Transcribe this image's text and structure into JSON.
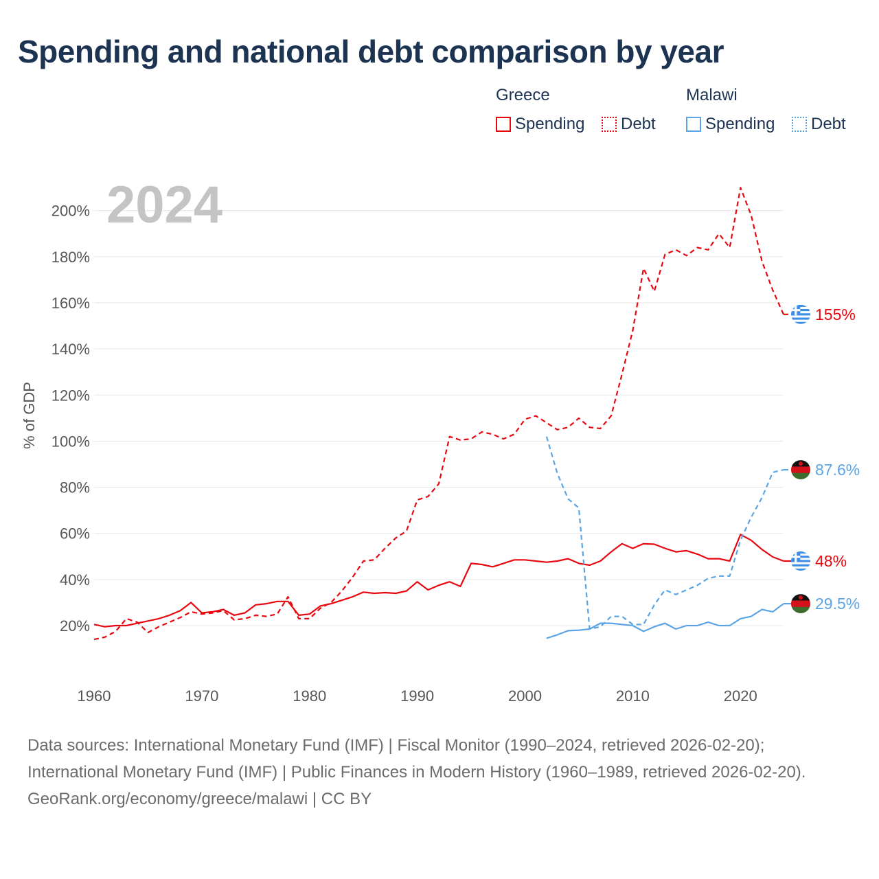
{
  "title": "Spending and national debt comparison by year",
  "legend": {
    "groups": [
      {
        "country": "Greece",
        "items": [
          {
            "label": "Spending",
            "color": "#e8070f",
            "style": "solid"
          },
          {
            "label": "Debt",
            "color": "#e8070f",
            "style": "dotted"
          }
        ]
      },
      {
        "country": "Malawi",
        "items": [
          {
            "label": "Spending",
            "color": "#5aa4e6",
            "style": "solid"
          },
          {
            "label": "Debt",
            "color": "#5aa4e6",
            "style": "dotted"
          }
        ]
      }
    ]
  },
  "chart_data": {
    "type": "line",
    "title": "Spending and national debt comparison by year",
    "year_label": "2024",
    "ylabel": "% of GDP",
    "xlabel": "",
    "xlim": [
      1960,
      2024
    ],
    "ylim": [
      0,
      215
    ],
    "x_ticks": [
      1960,
      1970,
      1980,
      1990,
      2000,
      2010,
      2020
    ],
    "y_ticks": [
      20,
      40,
      60,
      80,
      100,
      120,
      140,
      160,
      180,
      200
    ],
    "y_tick_labels": [
      "20%",
      "40%",
      "60%",
      "80%",
      "100%",
      "120%",
      "140%",
      "160%",
      "180%",
      "200%"
    ],
    "series": [
      {
        "name": "Greece Spending",
        "color": "#e8070f",
        "dash": "solid",
        "end_label": "48%",
        "flag": "greece",
        "x": [
          1960,
          1961,
          1962,
          1963,
          1964,
          1965,
          1966,
          1967,
          1968,
          1969,
          1970,
          1971,
          1972,
          1973,
          1974,
          1975,
          1976,
          1977,
          1978,
          1979,
          1980,
          1981,
          1982,
          1983,
          1984,
          1985,
          1986,
          1987,
          1988,
          1989,
          1990,
          1991,
          1992,
          1993,
          1994,
          1995,
          1996,
          1997,
          1998,
          1999,
          2000,
          2001,
          2002,
          2003,
          2004,
          2005,
          2006,
          2007,
          2008,
          2009,
          2010,
          2011,
          2012,
          2013,
          2014,
          2015,
          2016,
          2017,
          2018,
          2019,
          2020,
          2021,
          2022,
          2023,
          2024
        ],
        "values": [
          20.5,
          19.5,
          20,
          20,
          21,
          22,
          23,
          24.5,
          26.5,
          30,
          25.5,
          26,
          27,
          24.5,
          25.5,
          29,
          29.5,
          30.5,
          30.5,
          24.5,
          25,
          28.5,
          29.5,
          31,
          32.5,
          34.5,
          34,
          34.3,
          34,
          35,
          39,
          35.5,
          37.5,
          39,
          37,
          47,
          46.5,
          45.5,
          47,
          48.5,
          48.5,
          48,
          47.5,
          48,
          49,
          47,
          46.2,
          48,
          52,
          55.5,
          53.5,
          55.5,
          55.3,
          53.5,
          52,
          52.5,
          51,
          49,
          49,
          48,
          59.5,
          57,
          53,
          49.8,
          48
        ]
      },
      {
        "name": "Greece Debt",
        "color": "#e8070f",
        "dash": "dashed",
        "end_label": "155%",
        "flag": "greece",
        "x": [
          1960,
          1961,
          1962,
          1963,
          1964,
          1965,
          1966,
          1967,
          1968,
          1969,
          1970,
          1971,
          1972,
          1973,
          1974,
          1975,
          1976,
          1977,
          1978,
          1979,
          1980,
          1981,
          1982,
          1983,
          1984,
          1985,
          1986,
          1987,
          1988,
          1989,
          1990,
          1991,
          1992,
          1993,
          1994,
          1995,
          1996,
          1997,
          1998,
          1999,
          2000,
          2001,
          2002,
          2003,
          2004,
          2005,
          2006,
          2007,
          2008,
          2009,
          2010,
          2011,
          2012,
          2013,
          2014,
          2015,
          2016,
          2017,
          2018,
          2019,
          2020,
          2021,
          2022,
          2023,
          2024
        ],
        "values": [
          14,
          15,
          17.5,
          23,
          21.5,
          17,
          19.5,
          21.5,
          23.5,
          26,
          25,
          25.5,
          26.5,
          22.5,
          23,
          24.5,
          24,
          25,
          32.5,
          23,
          23,
          27.5,
          30,
          35,
          41,
          48,
          48.5,
          53.5,
          58,
          61,
          74.5,
          76,
          81.5,
          102,
          100.5,
          101,
          104,
          103,
          101,
          103,
          109.5,
          111,
          108,
          105,
          106,
          110,
          106,
          105.5,
          111,
          129,
          148,
          175,
          165,
          181,
          183,
          180.5,
          184,
          183,
          190,
          184,
          210,
          198,
          178,
          165.5,
          155
        ]
      },
      {
        "name": "Malawi Spending",
        "color": "#5aa4e6",
        "dash": "solid",
        "end_label": "29.5%",
        "flag": "malawi",
        "x": [
          2002,
          2003,
          2004,
          2005,
          2006,
          2007,
          2008,
          2009,
          2010,
          2011,
          2012,
          2013,
          2014,
          2015,
          2016,
          2017,
          2018,
          2019,
          2020,
          2021,
          2022,
          2023,
          2024
        ],
        "values": [
          14.5,
          16,
          17.8,
          18,
          18.5,
          21,
          21,
          20.5,
          20,
          17.5,
          19.5,
          21,
          18.5,
          20,
          20,
          21.5,
          20,
          20,
          23,
          24,
          27,
          26,
          29.5
        ]
      },
      {
        "name": "Malawi Debt",
        "color": "#5aa4e6",
        "dash": "dashed",
        "end_label": "87.6%",
        "flag": "malawi",
        "x": [
          2002,
          2003,
          2004,
          2005,
          2006,
          2007,
          2008,
          2009,
          2010,
          2011,
          2012,
          2013,
          2014,
          2015,
          2016,
          2017,
          2018,
          2019,
          2020,
          2021,
          2022,
          2023,
          2024
        ],
        "values": [
          102,
          86,
          75,
          71,
          18.5,
          19.5,
          24,
          24,
          20.5,
          20.5,
          29,
          35.5,
          33.5,
          35.5,
          37.5,
          40.5,
          41.5,
          41.5,
          57,
          67,
          75.5,
          86.5,
          87.6
        ]
      }
    ]
  },
  "footer": {
    "sources": "Data sources: International Monetary Fund (IMF) | Fiscal Monitor (1990–2024, retrieved 2026-02-20); International Monetary Fund (IMF) | Public Finances in Modern History (1960–1989, retrieved 2026-02-20).",
    "credit": "GeoRank.org/economy/greece/malawi | CC BY"
  }
}
